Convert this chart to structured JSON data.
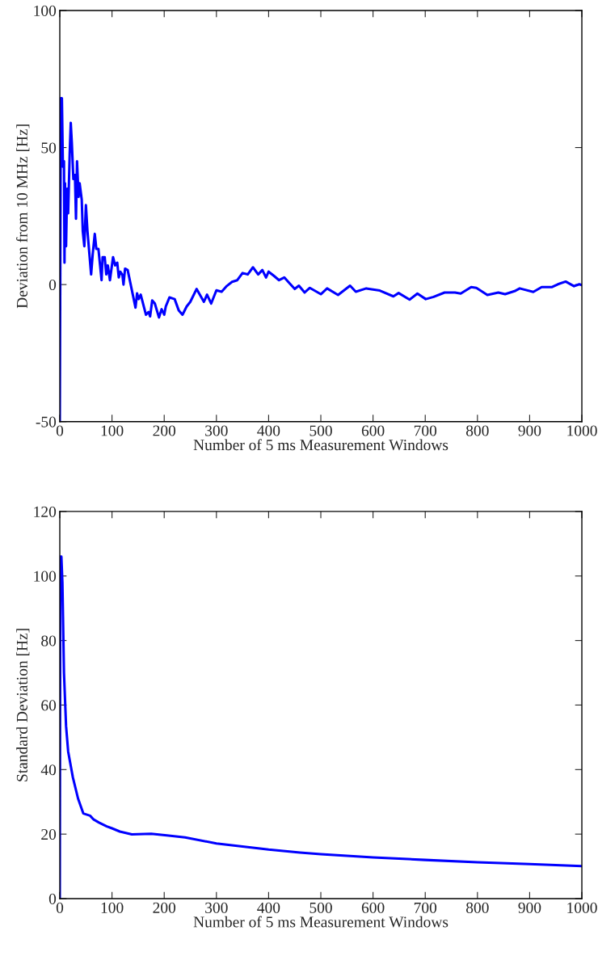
{
  "chart_data": [
    {
      "type": "line",
      "xlabel": "Number of 5 ms Measurement Windows",
      "ylabel": "Deviation from 10 MHz [Hz]",
      "xlim": [
        0,
        1000
      ],
      "ylim": [
        -50,
        100
      ],
      "xticks": [
        0,
        100,
        200,
        300,
        400,
        500,
        600,
        700,
        800,
        900,
        1000
      ],
      "yticks": [
        -50,
        0,
        50,
        100
      ],
      "grid": false,
      "legend": false,
      "marker": "none",
      "line_style": "solid",
      "series": [
        {
          "color": "#0000ff",
          "x": [
            0,
            2,
            4,
            6,
            8,
            9,
            10,
            12,
            14,
            16,
            19,
            21,
            23,
            26,
            29,
            31,
            33,
            36,
            38,
            42,
            44,
            47,
            50,
            53,
            60,
            63,
            67,
            70,
            74,
            80,
            82,
            86,
            89,
            92,
            96,
            102,
            106,
            110,
            113,
            116,
            120,
            122,
            125,
            130,
            145,
            148,
            151,
            155,
            165,
            170,
            173,
            177,
            182,
            190,
            195,
            200,
            203,
            210,
            220,
            228,
            235,
            243,
            250,
            262,
            276,
            282,
            290,
            300,
            310,
            320,
            330,
            340,
            350,
            360,
            370,
            380,
            388,
            395,
            400,
            410,
            420,
            430,
            440,
            450,
            458,
            469,
            479,
            500,
            512,
            533,
            556,
            567,
            587,
            613,
            639,
            649,
            670,
            685,
            701,
            716,
            737,
            757,
            768,
            788,
            798,
            819,
            840,
            853,
            871,
            881,
            907,
            923,
            943,
            954,
            969,
            985,
            995,
            1000
          ],
          "values": [
            -50,
            68,
            68,
            43,
            45,
            8,
            37,
            14,
            35,
            26,
            48,
            59,
            52,
            38.5,
            40,
            24,
            45,
            32,
            37,
            31,
            19.5,
            14,
            29,
            19.5,
            3.7,
            11,
            18.5,
            13,
            13,
            1.6,
            10,
            10,
            3.7,
            7,
            1.6,
            10,
            7,
            8,
            2.6,
            4.7,
            3.5,
            0,
            5.8,
            5.3,
            -8.4,
            -3.2,
            -5.3,
            -3.7,
            -11,
            -10,
            -11.6,
            -5.8,
            -6.9,
            -12,
            -9,
            -11,
            -8,
            -4.7,
            -5.3,
            -9.5,
            -11,
            -8,
            -6.3,
            -1.6,
            -6.3,
            -3.7,
            -6.9,
            -2.1,
            -2.6,
            -0.5,
            1,
            1.6,
            4.2,
            3.7,
            6.3,
            3.7,
            5.3,
            2.6,
            4.7,
            3.2,
            1.6,
            2.6,
            0.5,
            -1.6,
            -0.4,
            -2.9,
            -1.2,
            -3.5,
            -1.4,
            -3.8,
            -0.4,
            -2.6,
            -1.4,
            -2.2,
            -4.3,
            -3.1,
            -5.5,
            -3.3,
            -5.3,
            -4.5,
            -2.9,
            -2.9,
            -3.3,
            -0.9,
            -1.2,
            -3.8,
            -2.9,
            -3.5,
            -2.4,
            -1.4,
            -2.7,
            -0.9,
            -0.9,
            0.1,
            1.1,
            -0.6,
            0.1,
            -0.2
          ]
        }
      ]
    },
    {
      "type": "line",
      "xlabel": "Number of 5 ms Measurement Windows",
      "ylabel": "Standard Deviation [Hz]",
      "xlim": [
        0,
        1000
      ],
      "ylim": [
        0,
        120
      ],
      "xticks": [
        0,
        100,
        200,
        300,
        400,
        500,
        600,
        700,
        800,
        900,
        1000
      ],
      "yticks": [
        0,
        20,
        40,
        60,
        80,
        100,
        120
      ],
      "grid": false,
      "legend": false,
      "marker": "none",
      "line_style": "solid",
      "series": [
        {
          "color": "#0000ff",
          "x": [
            0,
            1,
            3,
            5,
            8,
            12,
            16,
            25,
            35,
            45,
            58,
            65,
            75,
            90,
            100,
            115,
            138,
            175,
            205,
            240,
            300,
            400,
            460,
            500,
            600,
            700,
            800,
            900,
            1000
          ],
          "values": [
            0,
            106,
            106,
            98,
            70,
            53.5,
            45.6,
            37.6,
            31,
            26.4,
            25.7,
            24.5,
            23.6,
            22.4,
            21.8,
            20.8,
            19.9,
            20.1,
            19.6,
            19,
            17.1,
            15.2,
            14.3,
            13.8,
            12.8,
            12,
            11.3,
            10.7,
            10.1
          ]
        }
      ]
    }
  ]
}
